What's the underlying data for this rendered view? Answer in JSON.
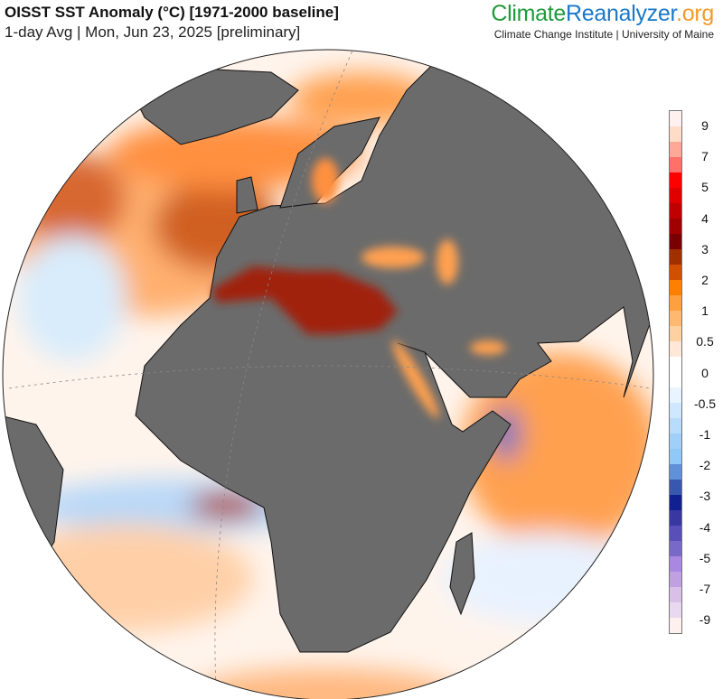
{
  "header": {
    "title": "OISST SST Anomaly (°C) [1971-2000 baseline]",
    "subtitle": "1-day Avg | Mon, Jun 23, 2025 [preliminary]"
  },
  "brand": {
    "part1": "Climate",
    "part2": "Reanalyzer",
    ".org": ".org",
    "institute": "Climate Change Institute | University of Maine"
  },
  "colorbar": {
    "unit": "°C",
    "labels": [
      "9",
      "7",
      "5",
      "4",
      "3",
      "2",
      "1",
      "0.5",
      "0",
      "-0.5",
      "-1",
      "-2",
      "-3",
      "-4",
      "-5",
      "-7",
      "-9"
    ],
    "colors": [
      "#fff0f0",
      "#ffdcc8",
      "#ffa898",
      "#ff7068",
      "#ff0000",
      "#e00000",
      "#c00000",
      "#a00000",
      "#780000",
      "#a03000",
      "#d05000",
      "#ff8000",
      "#ffa040",
      "#ffb870",
      "#ffd0a0",
      "#ffe8d8",
      "#ffffff",
      "#ffffff",
      "#e8f4ff",
      "#d0e8ff",
      "#b8dcfc",
      "#a0d0fa",
      "#90c8f8",
      "#6090d8",
      "#3858b0",
      "#102090",
      "#3838a0",
      "#5850b8",
      "#7868c8",
      "#a888e0",
      "#c0a0e0",
      "#d8c0e8",
      "#e8d8f0",
      "#fff0f0"
    ]
  },
  "map": {
    "projection": "orthographic",
    "land_color": "#6b6b6b",
    "view": "Europe, Africa, Middle East, Atlantic and Indian Oceans"
  }
}
